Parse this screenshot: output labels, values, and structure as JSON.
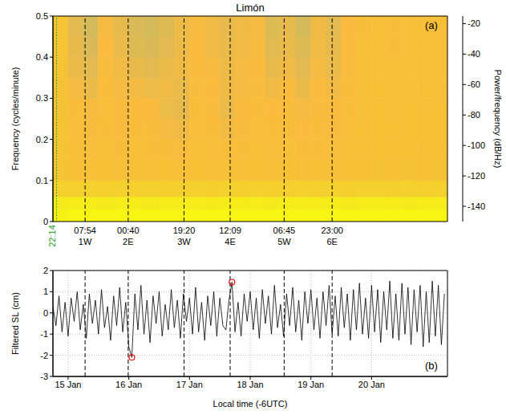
{
  "chart_data": [
    {
      "type": "heatmap",
      "title": "Limón",
      "panel": "(a)",
      "tick_labels": "y",
      "xlim": [
        -0.25,
        6.25
      ],
      "ylim": [
        0,
        0.5
      ],
      "yticks": [
        0,
        0.1,
        0.2,
        0.3,
        0.4,
        0.5
      ],
      "y_label": "Frequency (cycles/minute)",
      "x_edges": [
        -0.25,
        0,
        0.25,
        0.5,
        0.75,
        1,
        1.25,
        1.5,
        1.75,
        2,
        2.25,
        2.5,
        2.75,
        3,
        3.25,
        3.5,
        3.75,
        4,
        4.25,
        4.5,
        4.75,
        5,
        5.25,
        5.5,
        5.75,
        6,
        6.25
      ],
      "y_edges": [
        0,
        0.03,
        0.06,
        0.1,
        0.15,
        0.2,
        0.25,
        0.3,
        0.35,
        0.4,
        0.45,
        0.5
      ],
      "cells": [
        [
          -20,
          -18,
          -18,
          -18,
          -18,
          -18,
          -18,
          -18,
          -18,
          -18,
          -18,
          -18,
          -18,
          -18,
          -18,
          -18,
          -18,
          -18,
          -18,
          -18,
          -18,
          -18,
          -18,
          -18,
          -18,
          -18
        ],
        [
          -23,
          -22,
          -22,
          -23,
          -22,
          -22,
          -23,
          -22,
          -22,
          -22,
          -23,
          -22,
          -22,
          -22,
          -23,
          -22,
          -22,
          -22,
          -22,
          -23,
          -22,
          -22,
          -22,
          -23,
          -22,
          -22
        ],
        [
          -36,
          -37,
          -36,
          -37,
          -36,
          -37,
          -36,
          -37,
          -37,
          -36,
          -37,
          -36,
          -37,
          -36,
          -37,
          -37,
          -36,
          -37,
          -36,
          -37,
          -36,
          -36,
          -37,
          -36,
          -37,
          -36
        ],
        [
          -45,
          -48,
          -49,
          -47,
          -50,
          -48,
          -49,
          -48,
          -50,
          -47,
          -49,
          -48,
          -50,
          -48,
          -49,
          -47,
          -49,
          -48,
          -50,
          -48,
          -47,
          -46,
          -47,
          -46,
          -47,
          -46
        ],
        [
          -45,
          -50,
          -52,
          -49,
          -53,
          -50,
          -51,
          -53,
          -54,
          -50,
          -52,
          -51,
          -53,
          -50,
          -52,
          -49,
          -53,
          -51,
          -52,
          -50,
          -48,
          -47,
          -48,
          -47,
          -48,
          -47
        ],
        [
          -45,
          -52,
          -54,
          -51,
          -55,
          -53,
          -53,
          -58,
          -60,
          -52,
          -53,
          -59,
          -54,
          -52,
          -53,
          -51,
          -55,
          -53,
          -54,
          -52,
          -48,
          -47,
          -48,
          -48,
          -47,
          -48
        ],
        [
          -46,
          -53,
          -57,
          -52,
          -56,
          -55,
          -56,
          -61,
          -63,
          -53,
          -54,
          -62,
          -56,
          -53,
          -55,
          -53,
          -58,
          -54,
          -56,
          -53,
          -49,
          -48,
          -49,
          -48,
          -49,
          -48
        ],
        [
          -46,
          -58,
          -62,
          -53,
          -58,
          -59,
          -61,
          -60,
          -62,
          -54,
          -55,
          -60,
          -58,
          -54,
          -60,
          -56,
          -62,
          -56,
          -59,
          -53,
          -49,
          -48,
          -50,
          -49,
          -48,
          -49
        ],
        [
          -45,
          -62,
          -65,
          -54,
          -60,
          -63,
          -65,
          -62,
          -60,
          -55,
          -57,
          -61,
          -58,
          -56,
          -63,
          -60,
          -65,
          -58,
          -62,
          -54,
          -50,
          -49,
          -50,
          -49,
          -50,
          -49
        ],
        [
          -45,
          -63,
          -69,
          -56,
          -62,
          -67,
          -69,
          -65,
          -61,
          -56,
          -59,
          -62,
          -59,
          -57,
          -66,
          -62,
          -68,
          -59,
          -63,
          -55,
          -50,
          -49,
          -51,
          -50,
          -49,
          -50
        ],
        [
          -44,
          -65,
          -70,
          -58,
          -63,
          -69,
          -70,
          -67,
          -61,
          -57,
          -60,
          -63,
          -60,
          -58,
          -68,
          -63,
          -70,
          -60,
          -65,
          -56,
          -51,
          -50,
          -51,
          -50,
          -50,
          -51
        ]
      ],
      "colorbar": {
        "label": "Power/frequency (dB/Hz)",
        "range": [
          -150,
          -15
        ],
        "ticks": [
          -140,
          -120,
          -100,
          -80,
          -60,
          -40,
          -20
        ]
      },
      "events": [
        {
          "x": -0.19,
          "time": "22:14",
          "line_style": "dotted",
          "color": "#1e9e1e"
        },
        {
          "x": 0.28,
          "time": "07:54",
          "label": "1W",
          "line_style": "dashed",
          "color": "#000000"
        },
        {
          "x": 0.99,
          "time": "00:40",
          "label": "2E",
          "line_style": "dashed",
          "color": "#000000"
        },
        {
          "x": 1.91,
          "time": "19:20",
          "label": "3W",
          "line_style": "dashed",
          "color": "#000000"
        },
        {
          "x": 2.67,
          "time": "12:09",
          "label": "4E",
          "line_style": "dashed",
          "color": "#000000"
        },
        {
          "x": 3.56,
          "time": "06:45",
          "label": "5W",
          "line_style": "dashed",
          "color": "#000000"
        },
        {
          "x": 4.35,
          "time": "23:00",
          "label": "6E",
          "line_style": "dashed",
          "color": "#000000"
        }
      ]
    },
    {
      "type": "line",
      "panel": "(b)",
      "color": "#000000",
      "grid": true,
      "xlim": [
        -0.25,
        6.25
      ],
      "xticks": [
        {
          "value": 0,
          "label": "15 Jan"
        },
        {
          "value": 1,
          "label": "16 Jan"
        },
        {
          "value": 2,
          "label": "17 Jan"
        },
        {
          "value": 3,
          "label": "18 Jan"
        },
        {
          "value": 4,
          "label": "19 Jan"
        },
        {
          "value": 5,
          "label": "20 Jan"
        }
      ],
      "x_label": "Local time (-6UTC)",
      "ylim": [
        -3,
        2
      ],
      "yticks": [
        -3,
        -2,
        -1,
        0,
        1,
        2
      ],
      "y_label": "Filtered SL (cm)",
      "x": [
        -0.25,
        -0.2,
        -0.15,
        -0.1,
        -0.05,
        0,
        0.05,
        0.1,
        0.15,
        0.2,
        0.25,
        0.3,
        0.35,
        0.4,
        0.45,
        0.5,
        0.55,
        0.6,
        0.65,
        0.7,
        0.75,
        0.8,
        0.85,
        0.9,
        0.95,
        1,
        1.05,
        1.1,
        1.15,
        1.2,
        1.25,
        1.3,
        1.35,
        1.4,
        1.45,
        1.5,
        1.55,
        1.6,
        1.65,
        1.7,
        1.75,
        1.8,
        1.85,
        1.9,
        1.95,
        2,
        2.05,
        2.1,
        2.15,
        2.2,
        2.25,
        2.3,
        2.35,
        2.4,
        2.45,
        2.5,
        2.55,
        2.6,
        2.65,
        2.7,
        2.75,
        2.8,
        2.85,
        2.9,
        2.95,
        3,
        3.05,
        3.1,
        3.15,
        3.2,
        3.25,
        3.3,
        3.35,
        3.4,
        3.45,
        3.5,
        3.55,
        3.6,
        3.65,
        3.7,
        3.75,
        3.8,
        3.85,
        3.9,
        3.95,
        4,
        4.05,
        4.1,
        4.15,
        4.2,
        4.25,
        4.3,
        4.35,
        4.4,
        4.45,
        4.5,
        4.55,
        4.6,
        4.65,
        4.7,
        4.75,
        4.8,
        4.85,
        4.9,
        4.95,
        5,
        5.05,
        5.1,
        5.15,
        5.2,
        5.25,
        5.3,
        5.35,
        5.4,
        5.45,
        5.5,
        5.55,
        5.6,
        5.65,
        5.7,
        5.75,
        5.8,
        5.85,
        5.9,
        5.95,
        6,
        6.05,
        6.1,
        6.15,
        6.2
      ],
      "values": [
        0.3,
        -0.6,
        0.8,
        -0.9,
        0.5,
        -1.1,
        0.7,
        -0.4,
        1.0,
        -0.8,
        0.4,
        -1.2,
        0.9,
        -0.5,
        0.6,
        -1.0,
        1.1,
        -0.7,
        0.3,
        -1.3,
        0.8,
        -0.6,
        1.2,
        -0.9,
        0.5,
        -1.6,
        -2.1,
        0.9,
        -0.8,
        1.3,
        -1.0,
        0.6,
        -1.4,
        0.8,
        -0.5,
        1.0,
        -1.1,
        0.4,
        -0.8,
        1.1,
        -0.7,
        0.6,
        -1.2,
        0.9,
        -0.4,
        0.7,
        -1.0,
        1.2,
        -0.9,
        0.5,
        -1.3,
        0.8,
        -0.6,
        1.0,
        -1.1,
        0.7,
        -0.6,
        -0.8,
        0.6,
        1.45,
        -0.9,
        0.5,
        -1.1,
        0.9,
        -0.4,
        1.0,
        -0.8,
        0.7,
        -1.2,
        1.1,
        -0.5,
        0.8,
        -1.0,
        1.3,
        -0.7,
        0.4,
        -1.1,
        0.9,
        -0.6,
        1.2,
        -0.9,
        0.6,
        -1.3,
        1.0,
        -0.5,
        1.1,
        -0.8,
        0.7,
        -1.2,
        1.0,
        -0.6,
        1.3,
        -1.0,
        0.8,
        -1.1,
        1.2,
        -0.7,
        0.9,
        -1.3,
        1.1,
        -0.8,
        1.4,
        -1.0,
        0.7,
        -1.2,
        1.3,
        -0.9,
        1.1,
        -1.4,
        1.0,
        -0.8,
        1.5,
        -1.2,
        0.9,
        -1.3,
        1.4,
        -1.0,
        1.2,
        -1.5,
        1.1,
        -0.9,
        1.3,
        -1.6,
        1.0,
        -1.4,
        1.5,
        -1.1,
        1.3,
        -1.5,
        0.9
      ],
      "markers": {
        "x": [
          1.05,
          2.7
        ],
        "y": [
          -2.1,
          1.45
        ],
        "color": "#ff0000",
        "marker": "circle"
      }
    }
  ]
}
